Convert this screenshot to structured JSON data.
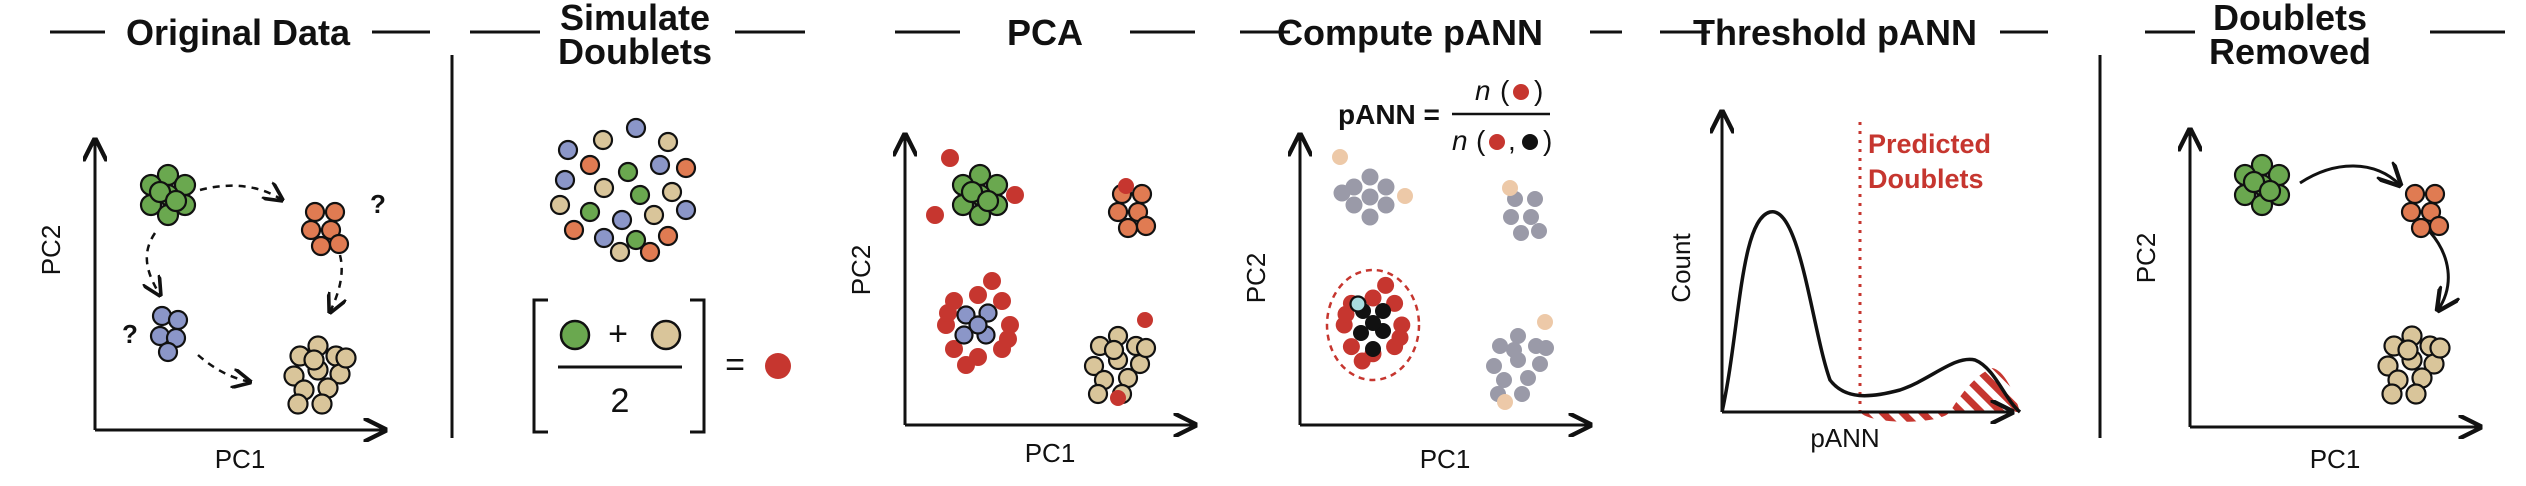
{
  "panels": {
    "original": {
      "title": "Original Data",
      "xlabel": "PC1",
      "ylabel": "PC2",
      "question_marks": [
        "?",
        "?"
      ]
    },
    "simulate": {
      "title_line1": "Simulate",
      "title_line2": "Doublets",
      "plus": "+",
      "denominator": "2",
      "equals": "="
    },
    "pca": {
      "title": "PCA",
      "xlabel": "PC1",
      "ylabel": "PC2"
    },
    "compute": {
      "title": "Compute pANN",
      "xlabel": "PC1",
      "ylabel": "PC2",
      "formula_lhs": "pANN =",
      "numerator_n": "n",
      "denominator_n": "n"
    },
    "threshold": {
      "title": "Threshold pANN",
      "xlabel": "pANN",
      "ylabel": "Count",
      "predicted_line1": "Predicted",
      "predicted_line2": "Doublets"
    },
    "removed": {
      "title_line1": "Doublets",
      "title_line2": "Removed",
      "xlabel": "PC1",
      "ylabel": "PC2"
    }
  },
  "colors": {
    "green": "#6aa84f",
    "orange": "#e07b52",
    "blue": "#8b96c8",
    "tan": "#d9c59a",
    "red": "#c6362f",
    "gray": "#9a9aa8",
    "peach": "#edc9a8",
    "cyan": "#a9dde0",
    "black": "#111111"
  }
}
